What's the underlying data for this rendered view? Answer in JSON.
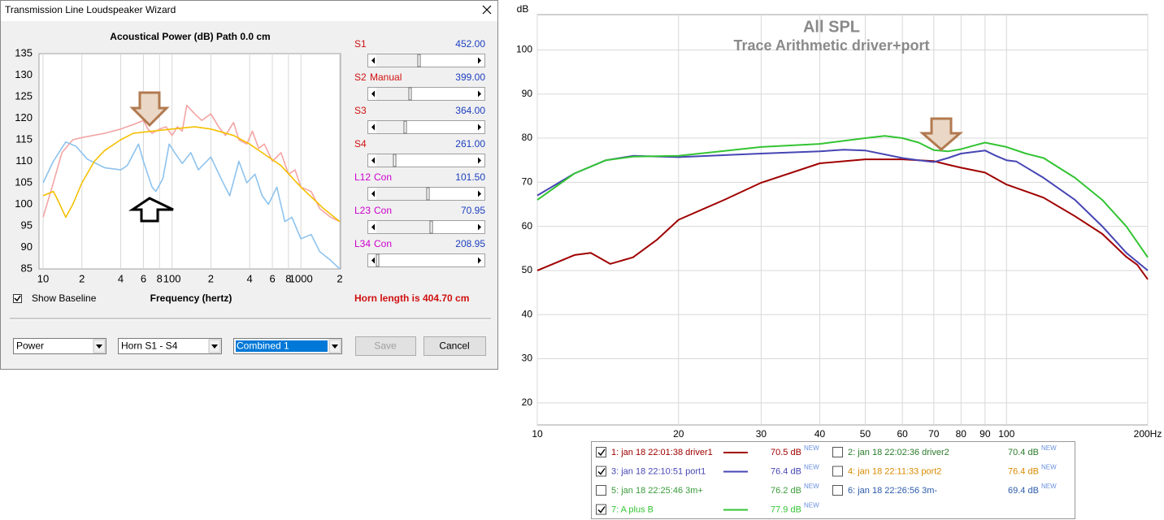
{
  "window": {
    "title": "Transmission Line Loudspeaker Wizard"
  },
  "sliders": [
    {
      "label": "S1",
      "value": "452.00",
      "color": "#d01010"
    },
    {
      "label": "S2",
      "mode": "Manual",
      "value": "399.00",
      "color": "#d01010"
    },
    {
      "label": "S3",
      "value": "364.00",
      "color": "#d01010"
    },
    {
      "label": "S4",
      "value": "261.00",
      "color": "#d01010"
    },
    {
      "label": "L12",
      "mode": "Con",
      "value": "101.50",
      "color": "#cc00cc"
    },
    {
      "label": "L23",
      "mode": "Con",
      "value": "70.95",
      "color": "#cc00cc"
    },
    {
      "label": "L34",
      "mode": "Con",
      "value": "208.95",
      "color": "#cc00cc"
    }
  ],
  "show_baseline": {
    "label": "Show Baseline",
    "checked": true
  },
  "horn_length": "Horn length is 404.70 cm",
  "dropdowns": [
    "Power",
    "Horn S1 - S4",
    "Combined 1"
  ],
  "buttons": [
    {
      "label": "Save",
      "enabled": false
    },
    {
      "label": "Cancel",
      "enabled": true
    }
  ],
  "chart_data": [
    {
      "type": "line",
      "title": "Acoustical Power (dB)   Path 0.0 cm",
      "xlabel": "Frequency (hertz)",
      "xscale": "log",
      "xlim": [
        10,
        2000
      ],
      "ylim": [
        85,
        135
      ],
      "grid": "x",
      "xticks": [
        10,
        {
          "value": 20,
          "label": "2"
        },
        {
          "value": 40,
          "label": "4"
        },
        {
          "value": 60,
          "label": "6"
        },
        {
          "value": 80,
          "label": "8"
        },
        100,
        {
          "value": 200,
          "label": "2"
        },
        {
          "value": 400,
          "label": "4"
        },
        {
          "value": 600,
          "label": "6"
        },
        {
          "value": 800,
          "label": "8"
        },
        1000,
        {
          "value": 2000,
          "label": "2"
        }
      ],
      "yticks": [
        85,
        90,
        95,
        100,
        105,
        110,
        115,
        120,
        125,
        130,
        135
      ],
      "series": [
        {
          "color": "#f4a4a4",
          "x": [
            10,
            12,
            14,
            17,
            20,
            30,
            40,
            50,
            60,
            65,
            70,
            80,
            90,
            100,
            110,
            120,
            130,
            150,
            170,
            200,
            230,
            260,
            300,
            330,
            380,
            420,
            470,
            520,
            600,
            700,
            800,
            900,
            1000,
            1200,
            1400,
            1700,
            2000
          ],
          "values": [
            97,
            105,
            112,
            115,
            115.5,
            116.5,
            117.5,
            118.5,
            119.5,
            117.5,
            116.5,
            117.5,
            118,
            116,
            118,
            117,
            123,
            121,
            119.5,
            121,
            118,
            116,
            119,
            115,
            114,
            117,
            113,
            114,
            110,
            112,
            107,
            108,
            104,
            103,
            99,
            97,
            96
          ]
        },
        {
          "color": "#8ec3ee",
          "x": [
            10,
            12,
            15,
            18,
            22,
            30,
            40,
            45,
            55,
            60,
            70,
            75,
            85,
            95,
            105,
            120,
            140,
            160,
            200,
            240,
            280,
            330,
            380,
            440,
            500,
            560,
            650,
            750,
            850,
            1000,
            1200,
            1400,
            1700,
            2000
          ],
          "values": [
            105,
            110,
            114.5,
            113.5,
            110.5,
            108.5,
            108,
            109,
            114,
            110,
            104,
            103,
            106,
            114,
            112,
            109.5,
            112,
            108,
            111,
            106,
            102,
            110,
            105,
            107,
            102,
            100,
            104,
            96,
            97,
            92,
            93,
            89,
            87,
            85
          ]
        },
        {
          "color": "#f5c000",
          "x": [
            10,
            12,
            13,
            15,
            17,
            20,
            25,
            30,
            40,
            50,
            70,
            100,
            150,
            200,
            300,
            400,
            500,
            700,
            1000,
            1500,
            2000
          ],
          "values": [
            102,
            103,
            101,
            97,
            100,
            105,
            110,
            112.5,
            115,
            116.5,
            117,
            117.5,
            118,
            117.5,
            116,
            114,
            112,
            109,
            104,
            99,
            96
          ]
        }
      ]
    },
    {
      "type": "line",
      "title": "All SPL",
      "subtitle": "Trace Arithmetic driver+port",
      "ylabel": "dB",
      "xscale": "log",
      "xlim": [
        10,
        200
      ],
      "ylim": [
        15,
        108
      ],
      "grid": "both",
      "xticks": [
        10,
        20,
        30,
        40,
        50,
        60,
        70,
        80,
        90,
        100,
        {
          "value": 200,
          "label": "200Hz"
        }
      ],
      "yticks": [
        20,
        30,
        40,
        50,
        60,
        70,
        80,
        90,
        100
      ],
      "series": [
        {
          "name": "1: jan 18 22:01:38 driver1",
          "color": "#a00000",
          "checked": true,
          "level": "70.5 dB",
          "badge": "NEW",
          "x": [
            10,
            12,
            13,
            14.3,
            16,
            18,
            20,
            25,
            30,
            40,
            50,
            60,
            70,
            75,
            80,
            90,
            100,
            120,
            140,
            160,
            180,
            190,
            200
          ],
          "values": [
            50,
            53.5,
            54,
            51.5,
            53,
            57,
            61.5,
            66,
            69.9,
            74.3,
            75.2,
            75.2,
            74.8,
            74,
            73.3,
            72.2,
            69.5,
            66.5,
            62.3,
            58.3,
            53.1,
            51.3,
            48
          ]
        },
        {
          "name": "2: jan 18 22:02:36 driver2",
          "color": "#2a7a2a",
          "checked": false,
          "level": "70.4 dB",
          "badge": "NEW"
        },
        {
          "name": "3: jan 18 22:10:51 port1",
          "color": "#4646b4",
          "checked": true,
          "level": "76.4 dB",
          "badge": "NEW",
          "x": [
            10,
            12,
            14,
            16,
            20,
            30,
            40,
            45,
            50,
            60,
            65,
            70,
            75,
            80,
            90,
            95,
            100,
            105,
            120,
            140,
            160,
            180,
            200
          ],
          "values": [
            67,
            72,
            75,
            76,
            75.7,
            76.5,
            77,
            77.4,
            77.2,
            75.5,
            75,
            74.6,
            75.5,
            76.5,
            77.2,
            76,
            75,
            74.7,
            71,
            66,
            60,
            54,
            50
          ]
        },
        {
          "name": "4: jan 18 22:11:33 port2",
          "color": "#d98a00",
          "checked": false,
          "level": "76.4 dB",
          "badge": "NEW"
        },
        {
          "name": "5: jan 18 22:25:46 3m+",
          "color": "#3a9a3a",
          "checked": false,
          "level": "76.2 dB",
          "badge": "NEW"
        },
        {
          "name": "6: jan 18 22:26:56 3m-",
          "color": "#2a5aa8",
          "checked": false,
          "level": "69.4 dB",
          "badge": "NEW"
        },
        {
          "name": "7: A plus B",
          "color": "#33c433",
          "checked": true,
          "level": "77.9 dB",
          "badge": "NEW",
          "x": [
            10,
            12,
            14,
            16,
            20,
            30,
            40,
            50,
            55,
            60,
            65,
            70,
            75,
            80,
            85,
            90,
            100,
            110,
            120,
            140,
            160,
            180,
            200
          ],
          "values": [
            66,
            72,
            75,
            75.8,
            76,
            78,
            78.7,
            80,
            80.5,
            80,
            79,
            77.3,
            77,
            77.5,
            78.3,
            79,
            78,
            76.5,
            75.5,
            71,
            66,
            60,
            53
          ]
        }
      ]
    }
  ]
}
